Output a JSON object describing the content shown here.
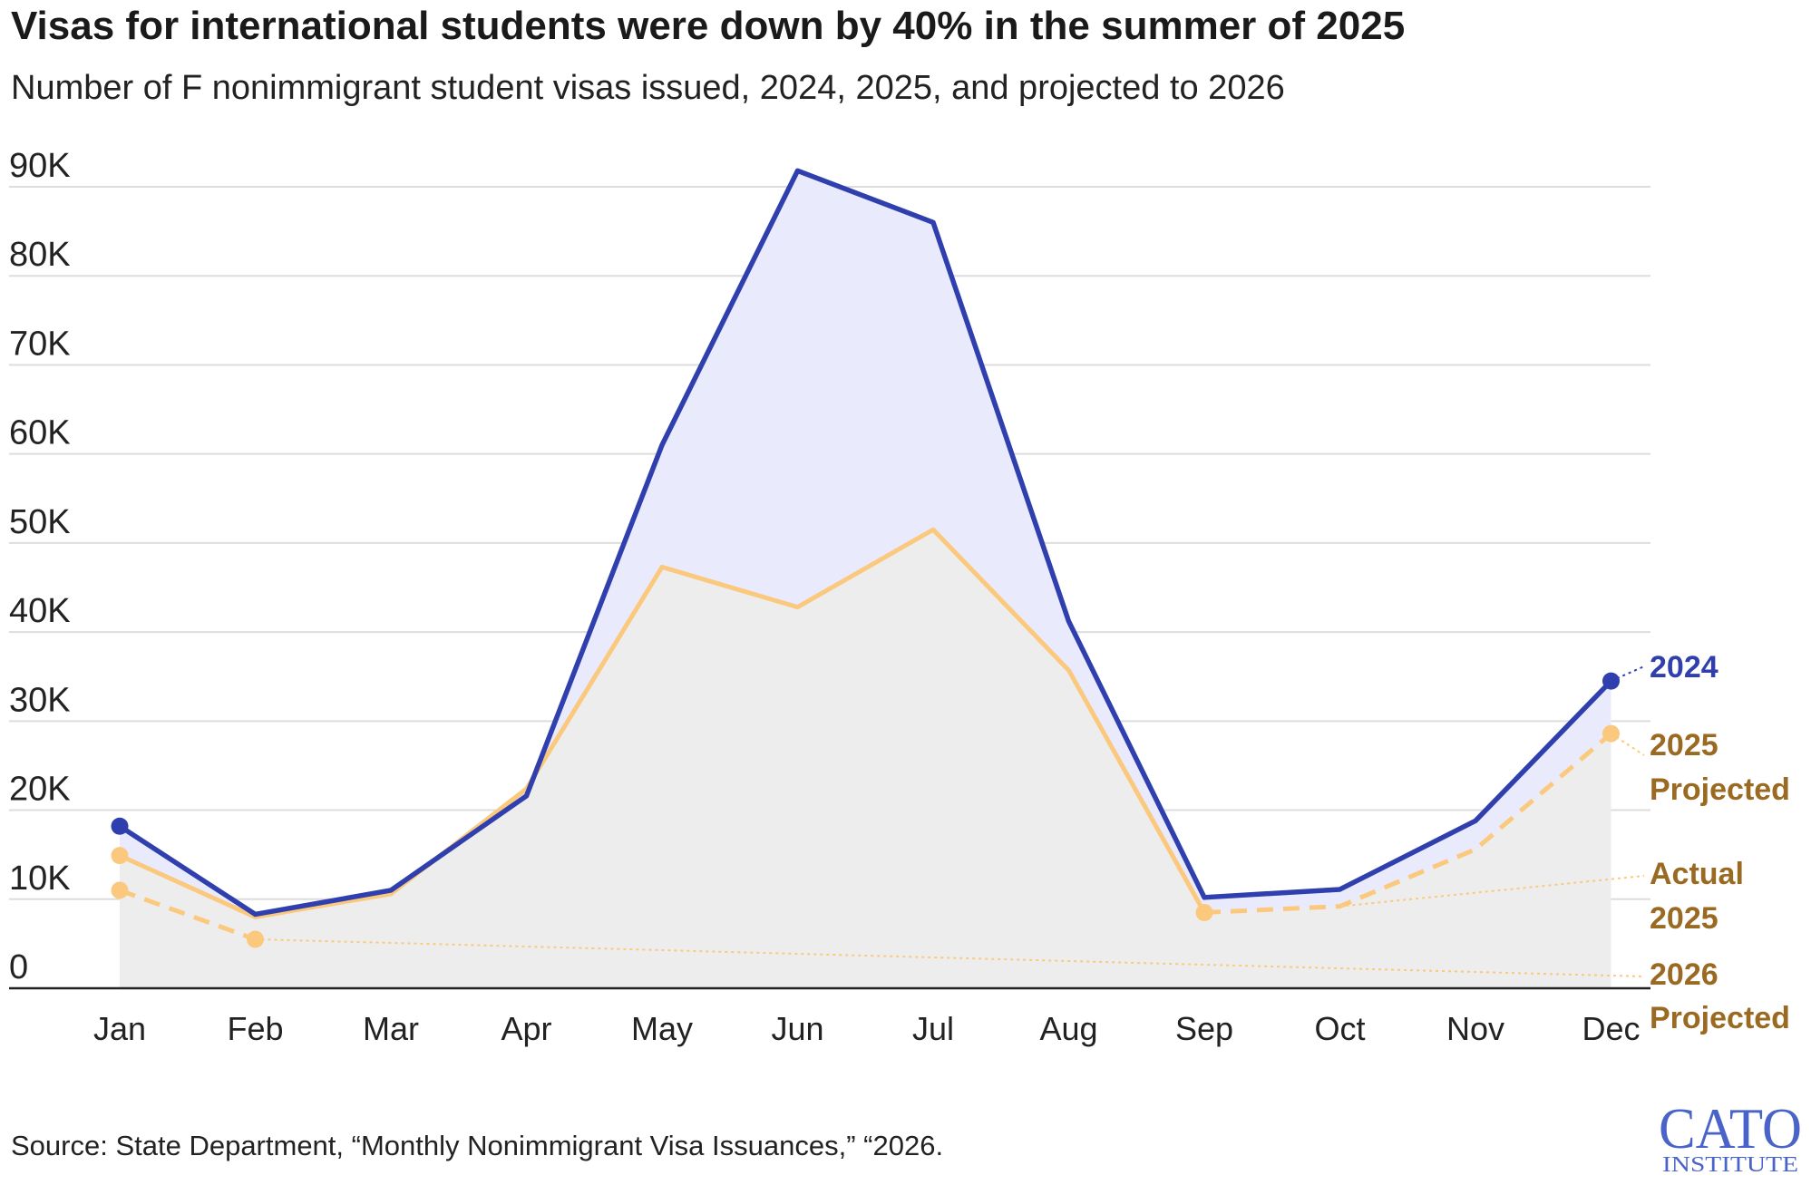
{
  "title": "Visas for international students were down by 40% in the summer of 2025",
  "subtitle": "Number of F nonimmigrant student visas issued, 2024, 2025, and projected to 2026",
  "source": "Source: State Department, “Monthly Nonimmigrant Visa Issuances,” “2026.",
  "logo": {
    "line1": "CATO",
    "line2": "INSTITUTE"
  },
  "colors": {
    "y2024": "#2f3fae",
    "y2025": "#fbc97d",
    "label2025": "#9a6a22",
    "fill2024": "#e9eafc",
    "fill2025": "#ededed",
    "grid": "#dddddd"
  },
  "chart_data": {
    "type": "line",
    "categories": [
      "Jan",
      "Feb",
      "Mar",
      "Apr",
      "May",
      "Jun",
      "Jul",
      "Aug",
      "Sep",
      "Oct",
      "Nov",
      "Dec"
    ],
    "y_ticks": [
      {
        "value": 0,
        "label": "0"
      },
      {
        "value": 10000,
        "label": "10K"
      },
      {
        "value": 20000,
        "label": "20K"
      },
      {
        "value": 30000,
        "label": "30K"
      },
      {
        "value": 40000,
        "label": "40K"
      },
      {
        "value": 50000,
        "label": "50K"
      },
      {
        "value": 60000,
        "label": "60K"
      },
      {
        "value": 70000,
        "label": "70K"
      },
      {
        "value": 80000,
        "label": "80K"
      },
      {
        "value": 90000,
        "label": "90K"
      }
    ],
    "ylim": [
      0,
      90000
    ],
    "grid": true,
    "series": [
      {
        "name": "2024",
        "values": [
          18200,
          8300,
          11000,
          21600,
          61000,
          91800,
          86000,
          41200,
          10200,
          11100,
          18800,
          34500
        ]
      },
      {
        "name": "Actual 2025",
        "values": [
          14900,
          8000,
          10600,
          22400,
          47300,
          42800,
          51500,
          35700,
          8500,
          null,
          null,
          null
        ]
      },
      {
        "name": "2025 Projected",
        "values": [
          null,
          null,
          null,
          null,
          null,
          null,
          null,
          null,
          8500,
          9200,
          15600,
          28600
        ]
      },
      {
        "name": "2026 Projected",
        "values": [
          11000,
          5500,
          null,
          null,
          null,
          null,
          null,
          null,
          null,
          null,
          null,
          null
        ]
      }
    ],
    "labels": {
      "y2024": "2024",
      "proj2025_a": "2025",
      "proj2025_b": "Projected",
      "actual2025_a": "Actual",
      "actual2025_b": "2025",
      "proj2026_a": "2026",
      "proj2026_b": "Projected"
    }
  }
}
